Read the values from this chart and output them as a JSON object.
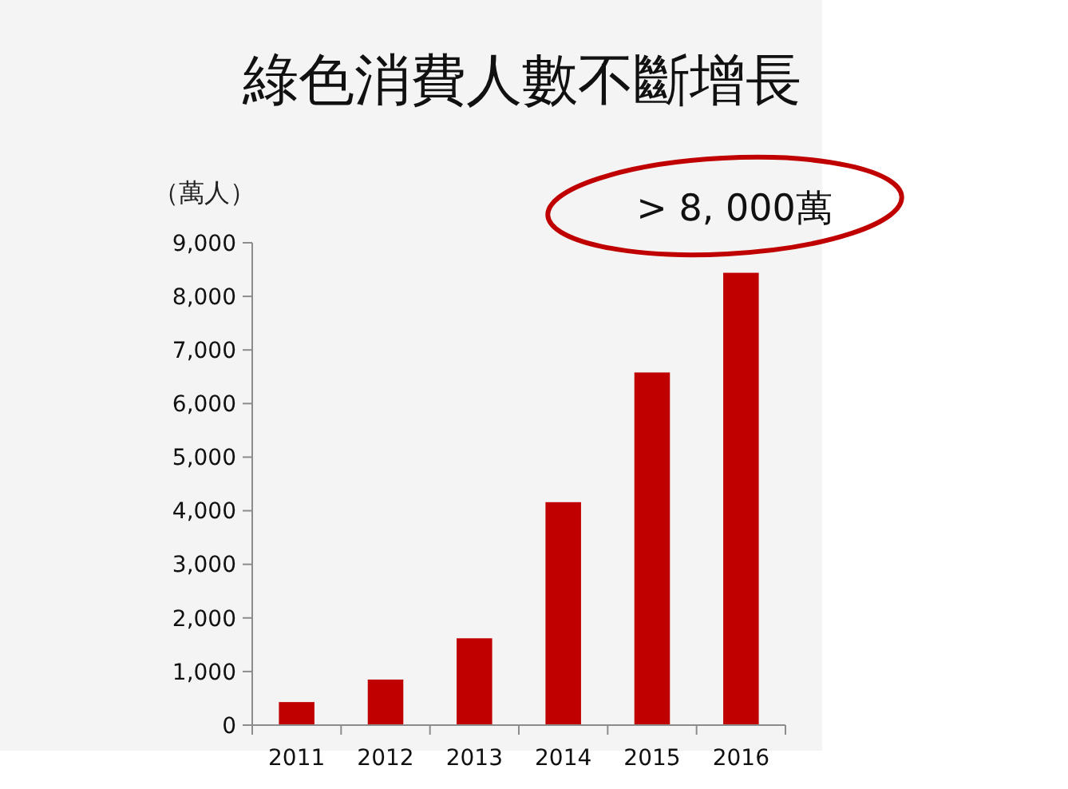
{
  "chart_data": {
    "type": "bar",
    "title": "綠色消費人數不斷增長",
    "ylabel": "（萬人）",
    "annotations": [
      "> 8, 000萬"
    ],
    "categories": [
      "2011",
      "2012",
      "2013",
      "2014",
      "2015",
      "2016"
    ],
    "values": [
      430,
      850,
      1620,
      4160,
      6580,
      8440
    ],
    "color": "#c00000",
    "ylim": [
      0,
      9000
    ],
    "yticks": [
      0,
      {
        "value": 1000,
        "label": "1,000"
      },
      {
        "value": 2000,
        "label": "2,000"
      },
      {
        "value": 3000,
        "label": "3,000"
      },
      {
        "value": 4000,
        "label": "4,000"
      },
      {
        "value": 5000,
        "label": "5,000"
      },
      {
        "value": 6000,
        "label": "6,000"
      },
      {
        "value": 7000,
        "label": "7,000"
      },
      {
        "value": 8000,
        "label": "8,000"
      },
      {
        "value": 9000,
        "label": "9,000"
      }
    ]
  }
}
